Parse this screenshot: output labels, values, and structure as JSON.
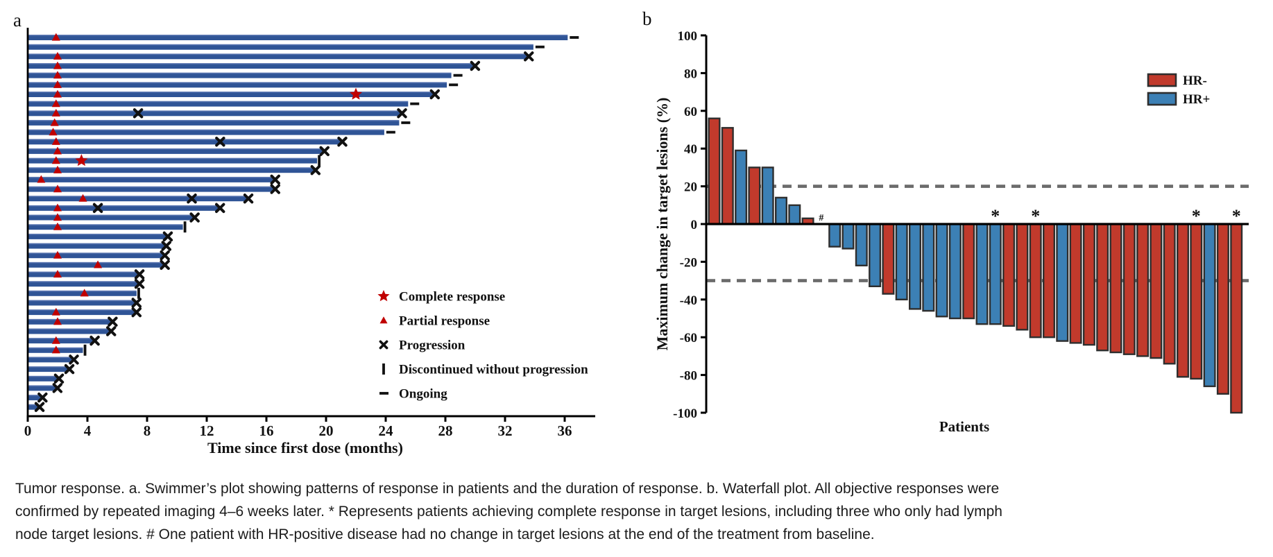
{
  "colors": {
    "swimmer_bar": "#2F5496",
    "swimmer_bar_light": "#6E86BD",
    "marker_red": "#C00000",
    "marker_black": "#111111",
    "hr_negative": "#C13A2C",
    "hr_positive": "#3C80B5",
    "bar_outline": "#2E2E2E",
    "dash_gray": "#6B6B6B",
    "axis_black": "#000000"
  },
  "panel_a": {
    "label": "a"
  },
  "panel_b": {
    "label": "b"
  },
  "caption": {
    "line1": "Tumor response. a. Swimmer’s plot showing patterns of response in patients and the duration of response. b. Waterfall plot. All objective responses were",
    "line2": "confirmed by repeated imaging 4–6 weeks later. * Represents patients achieving complete response in target lesions, including three who only had lymph",
    "line3": "node target lesions. # One patient with HR-positive disease had no change in target lesions at the end of the treatment from baseline."
  },
  "chart_data": [
    {
      "type": "swimmer",
      "xlabel": "Time since first dose (months)",
      "xticks": [
        0,
        4,
        8,
        12,
        16,
        20,
        24,
        28,
        32,
        36
      ],
      "xlim": [
        0,
        38
      ],
      "legend": [
        {
          "marker": "star",
          "label": "Complete response"
        },
        {
          "marker": "triangle",
          "label": "Partial response"
        },
        {
          "marker": "x",
          "label": "Progression"
        },
        {
          "marker": "bar",
          "label": "Discontinued without progression"
        },
        {
          "marker": "dash",
          "label": "Ongoing"
        }
      ],
      "marker_meanings": {
        "triangle": "Partial response (red triangle)",
        "star": "Complete response (red star)",
        "x": "Progression",
        "bar": "Discontinued without progression",
        "dash": "Ongoing"
      },
      "patients": [
        {
          "m": 36.2,
          "pr": 1.9,
          "end": "ongoing"
        },
        {
          "m": 33.9,
          "end": "ongoing"
        },
        {
          "m": 33.5,
          "pr": 2.0,
          "end": "progression"
        },
        {
          "m": 29.9,
          "pr": 2.0,
          "end": "progression"
        },
        {
          "m": 28.4,
          "pr": 2.0,
          "end": "ongoing"
        },
        {
          "m": 28.1,
          "pr": 2.0,
          "end": "ongoing"
        },
        {
          "m": 27.2,
          "pr": 2.0,
          "cr": 22.0,
          "end": "progression"
        },
        {
          "m": 25.5,
          "pr": 1.9,
          "end": "ongoing"
        },
        {
          "m": 25.0,
          "pr": 1.9,
          "x": [
            7.4
          ],
          "end": "progression"
        },
        {
          "m": 24.9,
          "pr": 1.8,
          "end": "ongoing"
        },
        {
          "m": 23.9,
          "pr": 1.7,
          "end": "ongoing"
        },
        {
          "m": 21.0,
          "pr": 1.9,
          "x": [
            12.9
          ],
          "end": "progression"
        },
        {
          "m": 19.8,
          "pr": 2.0,
          "end": "progression"
        },
        {
          "m": 19.4,
          "pr": 1.9,
          "cr": 3.6,
          "end": "discontinued"
        },
        {
          "m": 19.2,
          "pr": 2.0,
          "end": "progression"
        },
        {
          "m": 16.5,
          "pr": 0.9,
          "end": "progression"
        },
        {
          "m": 16.5,
          "pr": 2.0,
          "end": "progression"
        },
        {
          "m": 14.7,
          "pr": 3.7,
          "x": [
            11.0
          ],
          "end": "progression"
        },
        {
          "m": 12.8,
          "pr": 2.0,
          "x": [
            4.7
          ],
          "end": "progression"
        },
        {
          "m": 11.1,
          "pr": 2.0,
          "end": "progression"
        },
        {
          "m": 10.4,
          "pr": 2.0,
          "end": "discontinued"
        },
        {
          "m": 9.3,
          "end": "progression"
        },
        {
          "m": 9.2,
          "end": "progression"
        },
        {
          "m": 9.1,
          "pr": 2.0,
          "end": "progression"
        },
        {
          "m": 9.1,
          "pr": 4.7,
          "end": "progression"
        },
        {
          "m": 7.4,
          "pr": 2.0,
          "end": "progression"
        },
        {
          "m": 7.4,
          "end": "progression"
        },
        {
          "m": 7.3,
          "pr": 3.8,
          "end": "discontinued"
        },
        {
          "m": 7.2,
          "end": "progression"
        },
        {
          "m": 7.2,
          "pr": 1.9,
          "end": "progression"
        },
        {
          "m": 5.6,
          "pr": 2.0,
          "end": "progression"
        },
        {
          "m": 5.5,
          "end": "progression"
        },
        {
          "m": 4.4,
          "pr": 1.9,
          "end": "progression"
        },
        {
          "m": 3.7,
          "pr": 1.9,
          "end": "discontinued"
        },
        {
          "m": 3.0,
          "end": "progression"
        },
        {
          "m": 2.7,
          "end": "progression"
        },
        {
          "m": 2.0,
          "end": "progression"
        },
        {
          "m": 1.9,
          "end": "progression"
        },
        {
          "m": 0.9,
          "end": "progression"
        },
        {
          "m": 0.7,
          "end": "progression"
        }
      ]
    },
    {
      "type": "bar",
      "variant": "waterfall",
      "ylabel": "Maximum change in target lesions (%)",
      "xlabel": "Patients",
      "ylim": [
        -100,
        100
      ],
      "yticks": [
        100,
        80,
        60,
        40,
        20,
        0,
        -20,
        -40,
        -60,
        -80,
        -100
      ],
      "reference_lines": [
        20,
        -30
      ],
      "legend": [
        {
          "label": "HR-",
          "group": "HR-",
          "color": "#C13A2C"
        },
        {
          "label": "HR+",
          "group": "HR+",
          "color": "#3C80B5"
        }
      ],
      "annotation_marks": {
        "star": "*",
        "hash": "#"
      },
      "patients": [
        {
          "v": 56,
          "g": "HR-"
        },
        {
          "v": 51,
          "g": "HR-"
        },
        {
          "v": 39,
          "g": "HR+"
        },
        {
          "v": 30,
          "g": "HR-"
        },
        {
          "v": 30,
          "g": "HR+"
        },
        {
          "v": 14,
          "g": "HR+"
        },
        {
          "v": 10,
          "g": "HR+"
        },
        {
          "v": 3,
          "g": "HR-"
        },
        {
          "v": 0,
          "g": "HR+",
          "mark": "#"
        },
        {
          "v": -12,
          "g": "HR+"
        },
        {
          "v": -13,
          "g": "HR+"
        },
        {
          "v": -22,
          "g": "HR+"
        },
        {
          "v": -33,
          "g": "HR+"
        },
        {
          "v": -37,
          "g": "HR-"
        },
        {
          "v": -40,
          "g": "HR+"
        },
        {
          "v": -45,
          "g": "HR+"
        },
        {
          "v": -46,
          "g": "HR+"
        },
        {
          "v": -49,
          "g": "HR+"
        },
        {
          "v": -50,
          "g": "HR+"
        },
        {
          "v": -50,
          "g": "HR-"
        },
        {
          "v": -53,
          "g": "HR+"
        },
        {
          "v": -53,
          "g": "HR+",
          "mark": "*"
        },
        {
          "v": -54,
          "g": "HR-"
        },
        {
          "v": -56,
          "g": "HR-"
        },
        {
          "v": -60,
          "g": "HR-",
          "mark": "*"
        },
        {
          "v": -60,
          "g": "HR-"
        },
        {
          "v": -62,
          "g": "HR+"
        },
        {
          "v": -63,
          "g": "HR-"
        },
        {
          "v": -64,
          "g": "HR-"
        },
        {
          "v": -67,
          "g": "HR-"
        },
        {
          "v": -68,
          "g": "HR-"
        },
        {
          "v": -69,
          "g": "HR-"
        },
        {
          "v": -70,
          "g": "HR-"
        },
        {
          "v": -71,
          "g": "HR-"
        },
        {
          "v": -74,
          "g": "HR-"
        },
        {
          "v": -81,
          "g": "HR-"
        },
        {
          "v": -82,
          "g": "HR-",
          "mark": "*"
        },
        {
          "v": -86,
          "g": "HR+"
        },
        {
          "v": -90,
          "g": "HR-"
        },
        {
          "v": -100,
          "g": "HR-",
          "mark": "*"
        }
      ]
    }
  ]
}
